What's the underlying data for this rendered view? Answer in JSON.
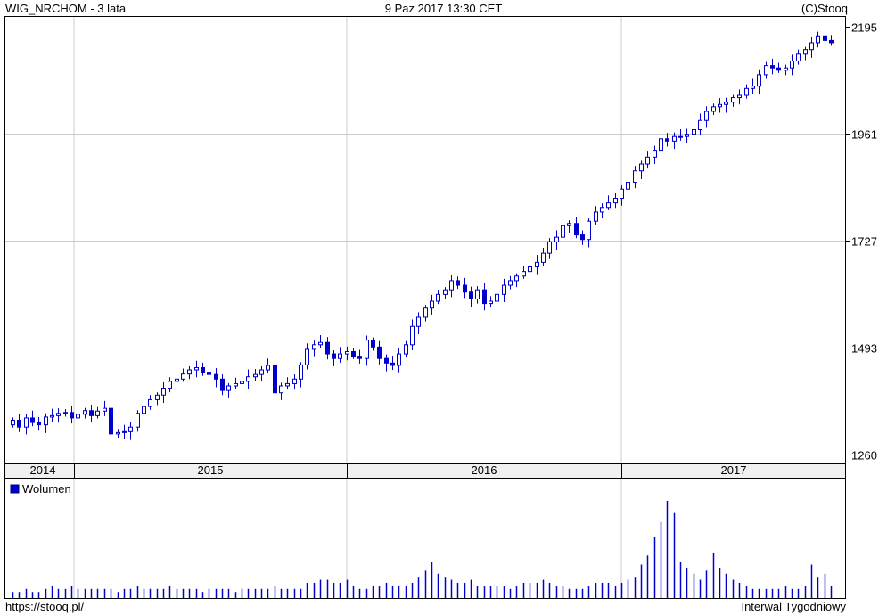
{
  "header": {
    "title": "WIG_NRCHOM - 3 lata",
    "timestamp": "9 Paz 2017 13:30 CET",
    "copyright": "(C)Stooq"
  },
  "footer": {
    "source": "https://stooq.pl/",
    "interval": "Interwal Tygodniowy"
  },
  "colors": {
    "candle": "#0000cc",
    "volume": "#0000cc",
    "grid": "#cccccc",
    "frame": "#000000",
    "background": "#ffffff"
  },
  "chart_data": [
    {
      "type": "candlestick",
      "yticks": [
        1260,
        1493,
        1727,
        1961,
        2195
      ],
      "ylim": [
        1260,
        2195
      ],
      "xticks": [
        "2014",
        "2015",
        "2016",
        "2017"
      ],
      "grid": true,
      "close": [
        1335,
        1320,
        1340,
        1330,
        1325,
        1342,
        1345,
        1350,
        1352,
        1340,
        1348,
        1356,
        1345,
        1355,
        1361,
        1305,
        1308,
        1310,
        1320,
        1350,
        1365,
        1380,
        1390,
        1405,
        1420,
        1425,
        1436,
        1445,
        1450,
        1440,
        1435,
        1425,
        1400,
        1410,
        1415,
        1420,
        1430,
        1435,
        1445,
        1455,
        1395,
        1410,
        1415,
        1425,
        1456,
        1490,
        1500,
        1505,
        1480,
        1470,
        1480,
        1485,
        1475,
        1470,
        1510,
        1495,
        1470,
        1460,
        1455,
        1480,
        1500,
        1540,
        1560,
        1580,
        1595,
        1610,
        1620,
        1640,
        1630,
        1615,
        1600,
        1620,
        1590,
        1595,
        1610,
        1630,
        1640,
        1650,
        1660,
        1670,
        1680,
        1700,
        1725,
        1735,
        1760,
        1765,
        1740,
        1730,
        1770,
        1790,
        1800,
        1810,
        1820,
        1840,
        1855,
        1880,
        1895,
        1910,
        1925,
        1950,
        1945,
        1955,
        1955,
        1960,
        1970,
        1990,
        2010,
        2020,
        2025,
        2030,
        2040,
        2045,
        2060,
        2065,
        2090,
        2110,
        2105,
        2100,
        2105,
        2120,
        2135,
        2145,
        2160,
        2175,
        2165,
        2160
      ],
      "volume_series": {
        "name": "Wolumen",
        "values": [
          2,
          2,
          3,
          2,
          2,
          3,
          4,
          3,
          3,
          4,
          3,
          3,
          3,
          3,
          3,
          3,
          2,
          3,
          3,
          4,
          3,
          3,
          3,
          3,
          4,
          3,
          3,
          3,
          3,
          2,
          3,
          3,
          3,
          3,
          2,
          3,
          3,
          3,
          3,
          3,
          4,
          3,
          3,
          3,
          3,
          5,
          5,
          6,
          6,
          5,
          5,
          6,
          4,
          3,
          3,
          4,
          4,
          5,
          4,
          4,
          4,
          5,
          7,
          9,
          12,
          8,
          7,
          6,
          5,
          5,
          6,
          4,
          4,
          4,
          4,
          4,
          3,
          4,
          5,
          5,
          5,
          6,
          5,
          4,
          4,
          3,
          3,
          3,
          4,
          5,
          5,
          5,
          4,
          5,
          6,
          7,
          11,
          14,
          20,
          25,
          32,
          28,
          12,
          10,
          8,
          6,
          9,
          15,
          10,
          8,
          6,
          5,
          4,
          3,
          3,
          3,
          3,
          3,
          4,
          3,
          3,
          4,
          11,
          7,
          8,
          4
        ]
      }
    }
  ]
}
